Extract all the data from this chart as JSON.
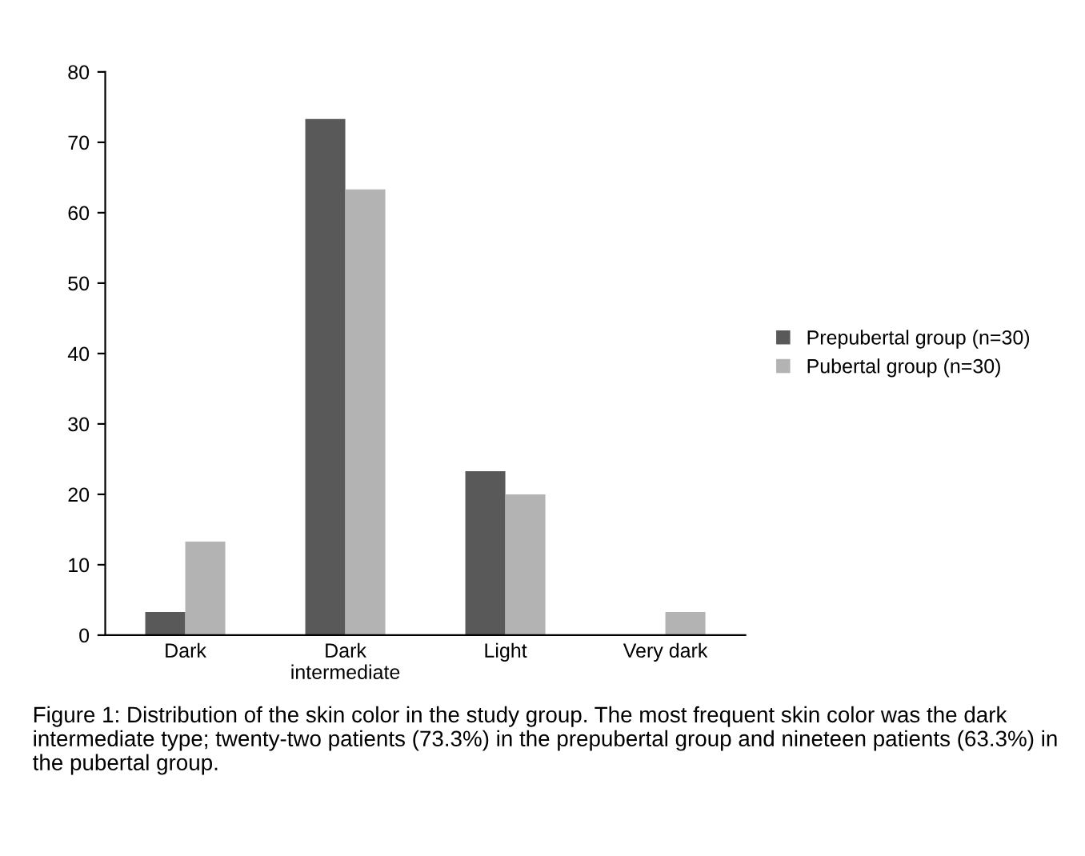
{
  "chart_data": {
    "type": "bar",
    "categories": [
      "Dark",
      "Dark\nintermediate",
      "Light",
      "Very dark"
    ],
    "series": [
      {
        "name": "Prepubertal group (n=30)",
        "color": "#595959",
        "values": [
          3.3,
          73.3,
          23.3,
          0
        ]
      },
      {
        "name": "Pubertal group (n=30)",
        "color": "#b3b3b3",
        "values": [
          13.3,
          63.3,
          20,
          3.3
        ]
      }
    ],
    "ylim": [
      0,
      80
    ],
    "yticks": [
      0,
      10,
      20,
      30,
      40,
      50,
      60,
      70,
      80
    ],
    "grid": false,
    "legend": "right",
    "annotations": [
      "Figure 1: Distribution of the skin color in the study group. The most frequent skin color was the dark intermediate type; twenty-two patients (73.3%) in the prepubertal group and nineteen patients (63.3%) in the pubertal group."
    ]
  }
}
